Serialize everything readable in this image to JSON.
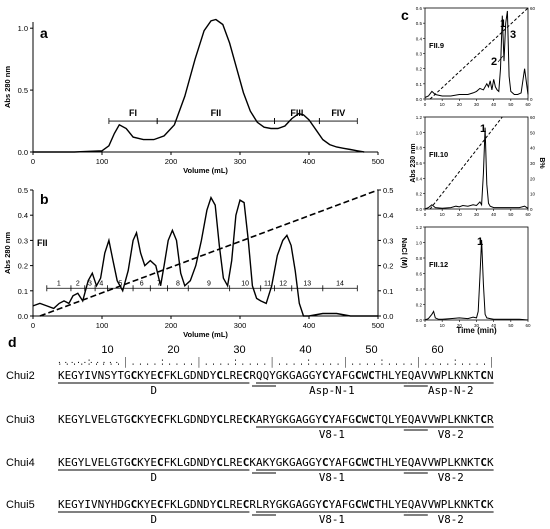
{
  "panel_labels": {
    "a": "a",
    "b": "b",
    "c": "c",
    "d": "d"
  },
  "chart_data": [
    {
      "panel": "a",
      "type": "line",
      "ylabel": "Abs 280 nm",
      "xlabel": "Volume (mL)",
      "xlim": [
        0,
        500
      ],
      "ylim": [
        0,
        1.05
      ],
      "xticks": [
        "0",
        "100",
        "200",
        "300",
        "400",
        "500"
      ],
      "yticks": [
        "0.0",
        "0.5",
        "1.0"
      ],
      "grid": false,
      "series": [
        {
          "x": [
            0,
            60,
            100,
            110,
            118,
            125,
            135,
            145,
            160,
            175,
            190,
            205,
            220,
            235,
            248,
            258,
            265,
            275,
            285,
            295,
            305,
            315,
            325,
            335,
            345,
            355,
            365,
            375,
            385,
            392,
            400,
            410,
            420,
            430,
            440,
            450,
            460,
            470,
            480
          ],
          "y": [
            0.0,
            0.0,
            0.01,
            0.05,
            0.15,
            0.22,
            0.19,
            0.12,
            0.1,
            0.1,
            0.13,
            0.22,
            0.45,
            0.75,
            0.98,
            1.06,
            1.07,
            1.03,
            0.88,
            0.68,
            0.48,
            0.33,
            0.24,
            0.2,
            0.19,
            0.19,
            0.21,
            0.27,
            0.31,
            0.3,
            0.26,
            0.18,
            0.1,
            0.06,
            0.04,
            0.03,
            0.02,
            0.01,
            0.0
          ]
        }
      ],
      "fractions": [
        {
          "label": "FI",
          "start": 110,
          "end": 180
        },
        {
          "label": "FII",
          "start": 180,
          "end": 350
        },
        {
          "label": "FIII",
          "start": 350,
          "end": 415
        },
        {
          "label": "FIV",
          "start": 415,
          "end": 470
        }
      ],
      "fraction_level": 0.25
    },
    {
      "panel": "b",
      "type": "line",
      "ylabel": "Abs 280 nm",
      "y2label": "NaCl (M)",
      "xlabel": "Volume (mL)",
      "annotation": "FII",
      "xlim": [
        0,
        500
      ],
      "ylim": [
        0,
        0.5
      ],
      "y2lim": [
        0,
        0.5
      ],
      "xticks": [
        "0",
        "100",
        "200",
        "300",
        "400",
        "500"
      ],
      "yticks": [
        "0.0",
        "0.1",
        "0.2",
        "0.3",
        "0.4",
        "0.5"
      ],
      "y2ticks": [
        "0.0",
        "0.1",
        "0.2",
        "0.3",
        "0.4",
        "0.5"
      ],
      "grid": false,
      "series": [
        {
          "name": "absorbance",
          "x": [
            0,
            10,
            20,
            30,
            38,
            45,
            52,
            58,
            65,
            72,
            80,
            86,
            92,
            98,
            104,
            110,
            116,
            122,
            130,
            138,
            145,
            150,
            156,
            162,
            170,
            178,
            185,
            190,
            196,
            202,
            208,
            214,
            220,
            228,
            236,
            244,
            252,
            258,
            264,
            270,
            276,
            282,
            288,
            294,
            300,
            306,
            312,
            318,
            324,
            330,
            338,
            346,
            354,
            362,
            368,
            374,
            380,
            386,
            392,
            400,
            420,
            440,
            460,
            480,
            500
          ],
          "y": [
            0.04,
            0.05,
            0.04,
            0.03,
            0.05,
            0.06,
            0.05,
            0.08,
            0.09,
            0.06,
            0.14,
            0.17,
            0.12,
            0.15,
            0.25,
            0.3,
            0.22,
            0.14,
            0.1,
            0.18,
            0.3,
            0.33,
            0.25,
            0.2,
            0.22,
            0.2,
            0.12,
            0.2,
            0.3,
            0.34,
            0.3,
            0.17,
            0.12,
            0.14,
            0.2,
            0.3,
            0.42,
            0.47,
            0.44,
            0.28,
            0.15,
            0.12,
            0.22,
            0.4,
            0.46,
            0.45,
            0.3,
            0.12,
            0.07,
            0.06,
            0.05,
            0.12,
            0.24,
            0.3,
            0.32,
            0.28,
            0.18,
            0.05,
            0.0,
            0.0,
            0.01,
            0.01,
            0.0,
            0.0,
            0.0
          ]
        },
        {
          "name": "gradient",
          "dashed": true,
          "x": [
            10,
            500
          ],
          "y": [
            0.0,
            0.5
          ]
        }
      ],
      "fraction_level": 0.11,
      "fraction_labels": [
        "1",
        "2",
        "3",
        "4",
        "5",
        "6",
        "7",
        "8",
        "9",
        "10",
        "11",
        "12",
        "13",
        "14"
      ],
      "fraction_bounds": [
        20,
        55,
        75,
        90,
        108,
        145,
        170,
        195,
        225,
        285,
        330,
        350,
        375,
        420,
        470
      ]
    },
    {
      "panel": "c",
      "type": "line",
      "ylabel": "Abs 230 nm",
      "y2label": "B%",
      "xlabel": "Time (min)",
      "xlim": [
        0,
        60
      ],
      "xticks": [
        "0",
        "10",
        "20",
        "30",
        "40",
        "50",
        "60"
      ],
      "subplots": [
        {
          "label": "FII.9",
          "ylim": [
            0,
            0.6
          ],
          "yticks": [
            "0.0",
            "0.1",
            "0.2",
            "0.3",
            "0.4",
            "0.5",
            "0.6"
          ],
          "y2ticks": [
            "0",
            "60"
          ],
          "peaks": [
            {
              "label": "1"
            },
            {
              "label": "2"
            },
            {
              "label": "3"
            }
          ],
          "x": [
            0,
            2,
            4,
            6,
            10,
            15,
            20,
            25,
            28,
            30,
            32,
            34,
            36,
            37,
            38,
            39,
            40,
            41,
            42,
            43,
            44,
            45,
            46,
            47,
            48,
            49,
            50,
            51,
            52,
            54,
            56,
            58,
            60
          ],
          "y": [
            0.01,
            0.02,
            0.05,
            0.03,
            0.02,
            0.02,
            0.03,
            0.03,
            0.04,
            0.05,
            0.07,
            0.06,
            0.1,
            0.08,
            0.12,
            0.06,
            0.13,
            0.08,
            0.06,
            0.05,
            0.2,
            0.55,
            0.25,
            0.5,
            0.58,
            0.15,
            0.05,
            0.04,
            0.03,
            0.03,
            0.04,
            0.2,
            0.03
          ],
          "gradient_x": [
            3,
            60
          ],
          "gradient_y": [
            0.0,
            0.6
          ]
        },
        {
          "label": "FII.10",
          "ylim": [
            0,
            1.3
          ],
          "yticks": [
            "0.0",
            "0.2",
            "0.4",
            "0.6",
            "0.8",
            "1.0",
            "1.2"
          ],
          "y2ticks": [
            "0",
            "10",
            "20",
            "30",
            "40",
            "50",
            "60"
          ],
          "peaks": [
            {
              "label": "1"
            }
          ],
          "x": [
            0,
            2,
            4,
            6,
            10,
            15,
            18,
            20,
            22,
            25,
            28,
            30,
            32,
            33,
            34,
            35,
            36,
            37,
            38,
            40,
            45,
            50,
            55,
            58,
            60
          ],
          "y": [
            0.0,
            0.02,
            0.06,
            0.02,
            0.01,
            0.02,
            0.04,
            0.03,
            0.05,
            0.04,
            0.06,
            0.05,
            0.1,
            0.06,
            0.5,
            1.15,
            0.35,
            0.08,
            0.04,
            0.02,
            0.02,
            0.02,
            0.02,
            0.04,
            0.01
          ],
          "gradient_x": [
            3,
            45
          ],
          "gradient_y": [
            0.0,
            1.3
          ]
        },
        {
          "label": "FII.12",
          "ylim": [
            0,
            1.3
          ],
          "yticks": [
            "0.0",
            "0.2",
            "0.4",
            "0.6",
            "0.8",
            "1.0",
            "1.2"
          ],
          "y2ticks": [],
          "peaks": [
            {
              "label": "1"
            }
          ],
          "x": [
            0,
            2,
            4,
            5,
            6,
            8,
            10,
            15,
            20,
            25,
            28,
            30,
            31,
            32,
            33,
            34,
            35,
            36,
            38,
            40,
            45,
            50,
            55,
            60
          ],
          "y": [
            0.0,
            0.02,
            0.08,
            0.12,
            0.03,
            0.01,
            0.01,
            0.02,
            0.03,
            0.02,
            0.04,
            0.03,
            0.12,
            0.6,
            1.12,
            0.5,
            0.08,
            0.03,
            0.02,
            0.01,
            0.01,
            0.01,
            0.01,
            0.0
          ]
        }
      ]
    }
  ],
  "sequences": {
    "ruler": [
      "10",
      "20",
      "30",
      "40",
      "50",
      "60"
    ],
    "rows": [
      {
        "name": "Chui2",
        "seq": "KEGYIVNSYTGCKYECFKLGDNDYCLRECRQQYGKGAGGYCYAFGCWCTHLYEQAVVWPLKNKTCN",
        "fragments": [
          {
            "label": "D",
            "start": 1,
            "end": 29
          },
          {
            "label": "Asp-N-1",
            "start": 31,
            "end": 53
          },
          {
            "label": "Asp-N-2",
            "start": 54,
            "end": 66
          }
        ]
      },
      {
        "name": "Chui3",
        "seq": "KEGYLVELGTGCKYECFKLGDNDYCLRECKARYGKGAGGYCYAFGCWCTQLYEQAVVWPLKNKTCR",
        "fragments": [
          {
            "label": "V8-1",
            "start": 31,
            "end": 53
          },
          {
            "label": "V8-2",
            "start": 54,
            "end": 66
          }
        ]
      },
      {
        "name": "Chui4",
        "seq": "KEGYLVELGTGCKYECFKLGDNDYCLRECKAKYGKGAGGYCYAFGCWCTHLYEQAVVWPLKNKTCK",
        "fragments": [
          {
            "label": "D",
            "start": 1,
            "end": 29
          },
          {
            "label": "V8-1",
            "start": 31,
            "end": 53
          },
          {
            "label": "V8-2",
            "start": 54,
            "end": 66
          }
        ]
      },
      {
        "name": "Chui5",
        "seq": "KEGYIVNYHDGCKYECFKLGDNDYCLRECRLRYGKGAGGYCYAFGCWCTHLYEQAVVWPLKNKTCK",
        "fragments": [
          {
            "label": "D",
            "start": 1,
            "end": 29
          },
          {
            "label": "V8-1",
            "start": 31,
            "end": 53
          },
          {
            "label": "V8-2",
            "start": 54,
            "end": 66
          }
        ]
      }
    ]
  }
}
